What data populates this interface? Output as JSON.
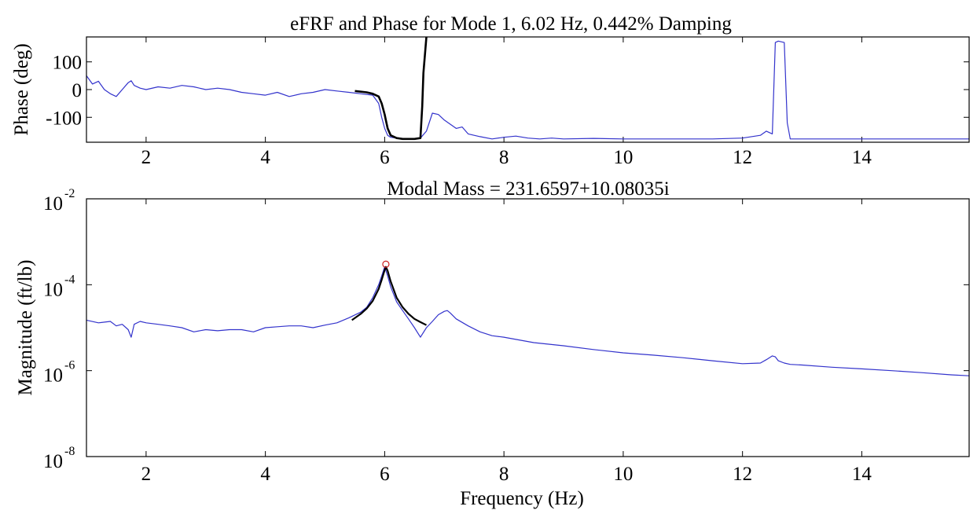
{
  "chart_data": [
    {
      "type": "line",
      "title": "eFRF and Phase for Mode 1, 6.02 Hz, 0.442% Damping",
      "xlabel": "",
      "ylabel": "Phase (deg)",
      "xlim": [
        1,
        15.8
      ],
      "ylim": [
        -190,
        190
      ],
      "xticks": [
        2,
        4,
        6,
        8,
        10,
        12,
        14
      ],
      "yticks": [
        100,
        0,
        -100
      ],
      "grid": false,
      "series": [
        {
          "color": "#3333cc",
          "x": [
            1.0,
            1.1,
            1.2,
            1.3,
            1.4,
            1.5,
            1.6,
            1.7,
            1.75,
            1.8,
            1.9,
            2.0,
            2.2,
            2.4,
            2.6,
            2.8,
            3.0,
            3.2,
            3.4,
            3.6,
            3.8,
            4.0,
            4.2,
            4.4,
            4.6,
            4.8,
            5.0,
            5.2,
            5.4,
            5.6,
            5.8,
            5.9,
            5.95,
            6.0,
            6.05,
            6.1,
            6.2,
            6.3,
            6.4,
            6.5,
            6.6,
            6.7,
            6.8,
            6.9,
            7.0,
            7.1,
            7.2,
            7.3,
            7.4,
            7.6,
            7.8,
            8.0,
            8.2,
            8.4,
            8.6,
            8.8,
            9.0,
            9.5,
            10.0,
            10.5,
            11.0,
            11.5,
            12.0,
            12.3,
            12.4,
            12.5,
            12.55,
            12.6,
            12.7,
            12.75,
            12.8,
            13.0,
            13.5,
            14.0,
            14.5,
            15.0,
            15.5,
            15.8
          ],
          "y": [
            50,
            20,
            30,
            0,
            -15,
            -25,
            0,
            25,
            32,
            15,
            5,
            0,
            10,
            5,
            15,
            10,
            0,
            5,
            0,
            -10,
            -15,
            -20,
            -10,
            -25,
            -15,
            -10,
            0,
            -5,
            -10,
            -15,
            -20,
            -50,
            -100,
            -140,
            -165,
            -172,
            -175,
            -176,
            -177,
            -178,
            -175,
            -150,
            -85,
            -90,
            -110,
            -125,
            -140,
            -135,
            -160,
            -170,
            -178,
            -172,
            -168,
            -175,
            -178,
            -175,
            -178,
            -176,
            -178,
            -178,
            -178,
            -178,
            -175,
            -165,
            -150,
            -160,
            170,
            175,
            170,
            -120,
            -178,
            -178,
            -178,
            -178,
            -178,
            -178,
            -178,
            -178
          ]
        },
        {
          "color": "#000000",
          "x": [
            5.5,
            5.7,
            5.8,
            5.9,
            5.95,
            6.0,
            6.02,
            6.05,
            6.1,
            6.2,
            6.3,
            6.4,
            6.5,
            6.6,
            6.63,
            6.65,
            6.7
          ],
          "y": [
            -5,
            -10,
            -15,
            -25,
            -50,
            -90,
            -110,
            -140,
            -165,
            -175,
            -178,
            -178,
            -178,
            -175,
            -60,
            60,
            190
          ]
        }
      ]
    },
    {
      "type": "line",
      "title": "Modal Mass = 231.6597+10.08035i",
      "xlabel": "Frequency (Hz)",
      "ylabel": "Magnitude (ft/lb)",
      "xlim": [
        1,
        15.8
      ],
      "ylim": [
        1e-08,
        0.01
      ],
      "yscale": "log",
      "xticks": [
        2,
        4,
        6,
        8,
        10,
        12,
        14
      ],
      "yticks": [
        {
          "value": 0.01,
          "base": "10",
          "exp": "-2"
        },
        {
          "value": 0.0001,
          "base": "10",
          "exp": "-4"
        },
        {
          "value": 1e-06,
          "base": "10",
          "exp": "-6"
        },
        {
          "value": 1e-08,
          "base": "10",
          "exp": "-8"
        }
      ],
      "grid": false,
      "series": [
        {
          "color": "#3333cc",
          "x": [
            1.0,
            1.2,
            1.4,
            1.5,
            1.6,
            1.7,
            1.75,
            1.8,
            1.9,
            2.0,
            2.2,
            2.4,
            2.6,
            2.8,
            3.0,
            3.2,
            3.4,
            3.6,
            3.8,
            4.0,
            4.2,
            4.4,
            4.6,
            4.8,
            5.0,
            5.2,
            5.4,
            5.6,
            5.7,
            5.8,
            5.9,
            5.95,
            6.0,
            6.05,
            6.1,
            6.2,
            6.3,
            6.4,
            6.5,
            6.6,
            6.7,
            6.8,
            6.9,
            7.0,
            7.05,
            7.1,
            7.2,
            7.4,
            7.6,
            7.8,
            8.0,
            8.5,
            9.0,
            9.5,
            10.0,
            10.5,
            11.0,
            11.5,
            12.0,
            12.3,
            12.4,
            12.5,
            12.55,
            12.6,
            12.7,
            12.8,
            13.0,
            13.5,
            14.0,
            14.5,
            15.0,
            15.5,
            15.8
          ],
          "y": [
            1.5e-05,
            1.3e-05,
            1.4e-05,
            1.1e-05,
            1.2e-05,
            9e-06,
            6e-06,
            1.2e-05,
            1.4e-05,
            1.3e-05,
            1.2e-05,
            1.1e-05,
            1e-05,
            8e-06,
            9e-06,
            8.5e-06,
            9e-06,
            9e-06,
            8e-06,
            1e-05,
            1.05e-05,
            1.1e-05,
            1.1e-05,
            1e-05,
            1.15e-05,
            1.3e-05,
            1.7e-05,
            2.3e-05,
            3e-05,
            5e-05,
            0.0001,
            0.00016,
            0.00026,
            0.00016,
            9e-05,
            4e-05,
            2.5e-05,
            1.6e-05,
            1e-05,
            6e-06,
            1e-05,
            1.4e-05,
            2e-05,
            2.4e-05,
            2.5e-05,
            2.2e-05,
            1.6e-05,
            1.1e-05,
            8e-06,
            6.5e-06,
            6e-06,
            4.5e-06,
            3.8e-06,
            3.1e-06,
            2.6e-06,
            2.3e-06,
            2e-06,
            1.7e-06,
            1.45e-06,
            1.5e-06,
            1.8e-06,
            2.2e-06,
            2.1e-06,
            1.7e-06,
            1.5e-06,
            1.4e-06,
            1.35e-06,
            1.2e-06,
            1.1e-06,
            1e-06,
            9e-07,
            8e-07,
            7.6e-07
          ]
        },
        {
          "color": "#000000",
          "x": [
            5.45,
            5.6,
            5.7,
            5.8,
            5.9,
            5.95,
            6.0,
            6.02,
            6.05,
            6.1,
            6.2,
            6.3,
            6.4,
            6.5,
            6.6,
            6.7
          ],
          "y": [
            1.5e-05,
            2.1e-05,
            2.8e-05,
            4.2e-05,
            8e-05,
            0.00013,
            0.00022,
            0.00026,
            0.00021,
            0.00012,
            5e-05,
            3e-05,
            2.1e-05,
            1.6e-05,
            1.35e-05,
            1.15e-05
          ]
        }
      ],
      "markers": [
        {
          "x": 6.02,
          "y": 0.0003,
          "color": "#cc2222"
        }
      ]
    }
  ]
}
